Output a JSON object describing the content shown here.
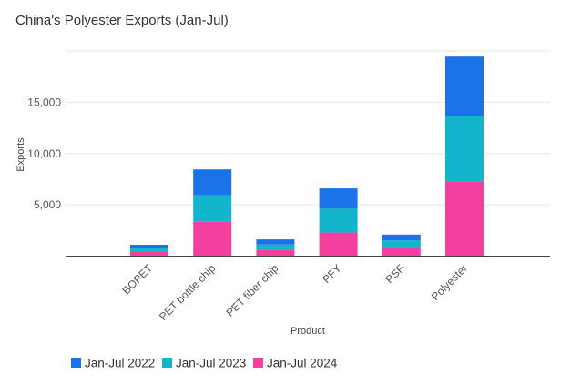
{
  "chart_data": {
    "type": "bar",
    "stacked": true,
    "title": "China's Polyester Exports (Jan-Jul)",
    "xlabel": "Product",
    "ylabel": "Exports",
    "categories": [
      "BOPET",
      "PET bottle chip",
      "PET fiber chip",
      "PFY",
      "PSF",
      "Polyester"
    ],
    "series": [
      {
        "name": "Jan-Jul 2024",
        "color": "#f43f9e",
        "values": [
          450,
          3350,
          650,
          2300,
          780,
          7300
        ]
      },
      {
        "name": "Jan-Jul 2023",
        "color": "#12b5cb",
        "values": [
          330,
          2600,
          480,
          2350,
          750,
          6400
        ]
      },
      {
        "name": "Jan-Jul 2022",
        "color": "#1a73e8",
        "values": [
          330,
          2500,
          500,
          1950,
          570,
          5750
        ]
      }
    ],
    "legend_order": [
      "Jan-Jul 2022",
      "Jan-Jul 2023",
      "Jan-Jul 2024"
    ],
    "yticks": [
      5000,
      10000,
      15000
    ],
    "ytick_labels": [
      "5,000",
      "10,000",
      "15,000"
    ],
    "ylim": [
      0,
      20000
    ],
    "grid": true,
    "legend_position": "bottom-left"
  }
}
